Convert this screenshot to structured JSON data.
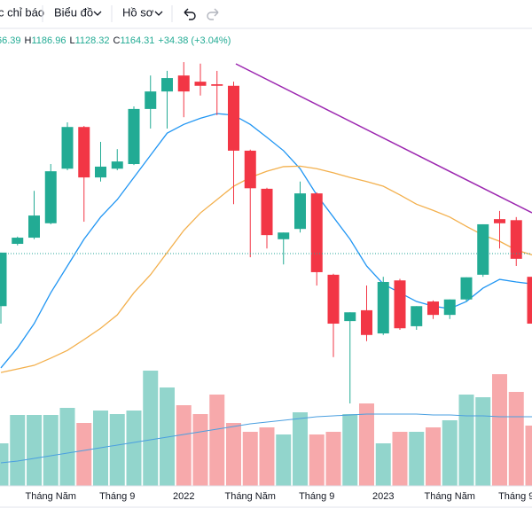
{
  "toolbar": {
    "items": [
      "c chỉ báo",
      "Biểu đồ",
      "Hồ sơ"
    ]
  },
  "chart_data": {
    "type": "candlestick",
    "legend": {
      "open_value": "66.39",
      "items": [
        {
          "label": "H",
          "value": "1186.96"
        },
        {
          "label": "L",
          "value": "1128.32"
        },
        {
          "label": "C",
          "value": "1164.31"
        }
      ],
      "change": "+34.38 (+3.04%)"
    },
    "categories": [
      null,
      null,
      null,
      "Tháng Năm",
      null,
      null,
      null,
      "Tháng 9",
      null,
      null,
      null,
      "2022",
      null,
      null,
      null,
      "Tháng Năm",
      null,
      null,
      null,
      "Tháng 9",
      null,
      null,
      null,
      "2023",
      null,
      null,
      null,
      "Tháng Năm",
      null,
      null,
      null,
      "Tháng 9",
      null
    ],
    "open": [
      1062,
      1183,
      1195,
      1223,
      1329,
      1410,
      1312,
      1329,
      1338,
      1445,
      1479,
      1510,
      1498,
      1493,
      1490,
      1364,
      1290,
      1192,
      1212,
      1281,
      1123,
      1033,
      1054,
      1009,
      1112,
      1023,
      1071,
      1045,
      1075,
      1123,
      1231,
      1229,
      1119
    ],
    "high": [
      1166,
      1197,
      1286,
      1338,
      1419,
      1412,
      1381,
      1367,
      1450,
      1510,
      1519,
      1536,
      1533,
      1519,
      1498,
      1366,
      1292,
      1205,
      1304,
      1283,
      1125,
      1050,
      1102,
      1119,
      1115,
      1062,
      1073,
      1075,
      1118,
      1221,
      1247,
      1235,
      1121
    ],
    "low": [
      1028,
      1180,
      1192,
      1221,
      1326,
      1226,
      1304,
      1326,
      1336,
      1407,
      1407,
      1429,
      1471,
      1433,
      1260,
      1157,
      1174,
      1143,
      1205,
      1102,
      963,
      873,
      994,
      1006,
      1016,
      1016,
      1037,
      1037,
      1071,
      1119,
      1174,
      1140,
      1028
    ],
    "close": [
      1166,
      1195,
      1238,
      1324,
      1410,
      1312,
      1333,
      1343,
      1445,
      1479,
      1505,
      1479,
      1490,
      1490,
      1364,
      1291,
      1200,
      1205,
      1281,
      1128,
      1028,
      1050,
      1006,
      1109,
      1019,
      1062,
      1045,
      1075,
      1118,
      1221,
      1223,
      1154,
      1028
    ],
    "volume": [
      48,
      80,
      80,
      80,
      88,
      71,
      85,
      81,
      85,
      130,
      111,
      91,
      81,
      103,
      71,
      61,
      66,
      58,
      83,
      58,
      61,
      81,
      93,
      48,
      61,
      61,
      66,
      74,
      103,
      100,
      126,
      106,
      68
    ],
    "up_color": "#22ab94",
    "down_color": "#f23645",
    "volume_up_color": "#92d5cc",
    "volume_down_color": "#f7a9ab",
    "ylim": [
      718,
      1605
    ],
    "vlim": [
      0,
      200
    ],
    "ma_series": [
      {
        "color": "#2196f3",
        "values": [
          942,
          981,
          1028,
          1088,
          1140,
          1192,
          1235,
          1269,
          1312,
          1355,
          1398,
          1415,
          1427,
          1436,
          1433,
          1415,
          1390,
          1364,
          1329,
          1278,
          1235,
          1192,
          1140,
          1105,
          1088,
          1071,
          1062,
          1057,
          1071,
          1097,
          1114,
          1109,
          1105
        ]
      },
      {
        "color": "#f3b04d",
        "values": [
          933,
          940,
          947,
          961,
          976,
          997,
          1019,
          1045,
          1088,
          1123,
          1166,
          1209,
          1243,
          1269,
          1295,
          1312,
          1324,
          1333,
          1334,
          1329,
          1321,
          1312,
          1304,
          1295,
          1278,
          1260,
          1248,
          1235,
          1217,
          1200,
          1188,
          1171,
          1161
        ]
      }
    ],
    "volume_ma": {
      "color": "#4a9fe0",
      "values": [
        26,
        28,
        31,
        34,
        37,
        40,
        43,
        46,
        49,
        52,
        55,
        58,
        61,
        64,
        67,
        70,
        72,
        74,
        76,
        78,
        79,
        80,
        81,
        81,
        81,
        81,
        80,
        80,
        79,
        79,
        78,
        78,
        78
      ]
    }
  }
}
